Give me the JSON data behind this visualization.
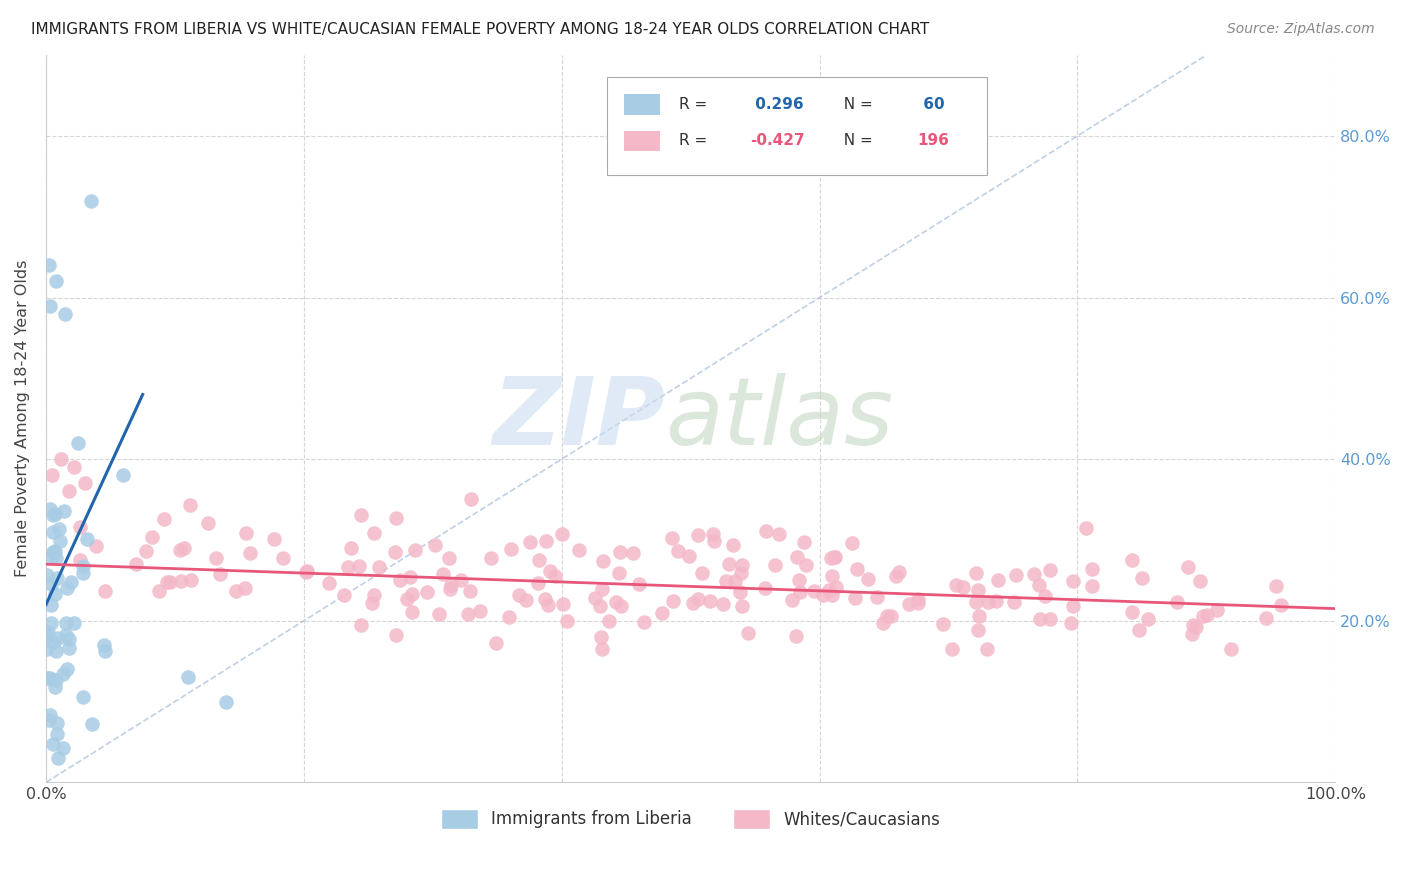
{
  "title": "IMMIGRANTS FROM LIBERIA VS WHITE/CAUCASIAN FEMALE POVERTY AMONG 18-24 YEAR OLDS CORRELATION CHART",
  "source": "Source: ZipAtlas.com",
  "ylabel": "Female Poverty Among 18-24 Year Olds",
  "xlim": [
    0,
    1.0
  ],
  "ylim": [
    0,
    0.9
  ],
  "xticks": [
    0.0,
    0.2,
    0.4,
    0.6,
    0.8,
    1.0
  ],
  "xticklabels": [
    "0.0%",
    "",
    "",
    "",
    "",
    "100.0%"
  ],
  "ytick_positions": [
    0.2,
    0.4,
    0.6,
    0.8
  ],
  "ytick_labels_right": [
    "20.0%",
    "40.0%",
    "60.0%",
    "80.0%"
  ],
  "legend_R1": "0.296",
  "legend_N1": "60",
  "legend_R2": "-0.427",
  "legend_N2": "196",
  "blue_color": "#a8cce4",
  "pink_color": "#f4b8c8",
  "blue_line_color": "#2166ac",
  "pink_line_color": "#e8567a",
  "blue_R": 0.296,
  "blue_N": 60,
  "pink_R": -0.427,
  "pink_N": 196,
  "blue_trend_x": [
    0.0,
    0.075
  ],
  "blue_trend_y": [
    0.22,
    0.48
  ],
  "pink_trend_x": [
    0.0,
    1.0
  ],
  "pink_trend_y": [
    0.27,
    0.215
  ],
  "dashed_line_x": [
    0.0,
    0.9
  ],
  "dashed_line_y": [
    0.0,
    0.9
  ]
}
